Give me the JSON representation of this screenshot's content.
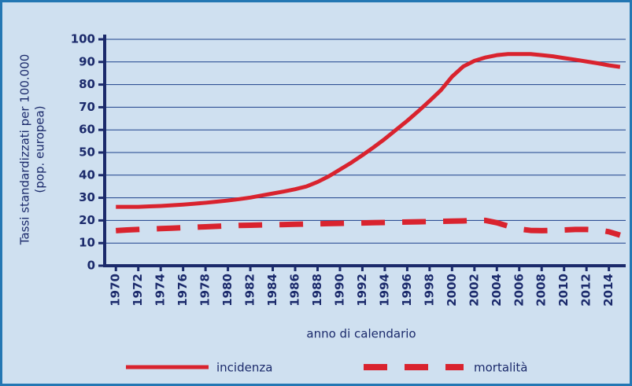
{
  "chart_data": {
    "type": "line",
    "y_label_lines": [
      "Tassi standardizzati per 100.000",
      "(pop. europea)"
    ],
    "x_label": "anno di calendario",
    "x": [
      1970,
      1971,
      1972,
      1973,
      1974,
      1975,
      1976,
      1977,
      1978,
      1979,
      1980,
      1981,
      1982,
      1983,
      1984,
      1985,
      1986,
      1987,
      1988,
      1989,
      1990,
      1991,
      1992,
      1993,
      1994,
      1995,
      1996,
      1997,
      1998,
      1999,
      2000,
      2001,
      2002,
      2003,
      2004,
      2005,
      2006,
      2007,
      2008,
      2009,
      2010,
      2011,
      2012,
      2013,
      2014,
      2015
    ],
    "series": [
      {
        "name": "incidenza",
        "color": "#d9232e",
        "dashed": false,
        "values": [
          26,
          26,
          26,
          26.2,
          26.4,
          26.7,
          27,
          27.4,
          27.8,
          28.3,
          28.8,
          29.4,
          30.1,
          31,
          31.9,
          32.8,
          33.8,
          35,
          37,
          39.5,
          42.5,
          45.5,
          48.8,
          52.3,
          56,
          60,
          64,
          68.3,
          72.8,
          77.5,
          83.5,
          88,
          90.5,
          92,
          93,
          93.5,
          93.5,
          93.5,
          93,
          92.5,
          91.7,
          91,
          90.2,
          89.4,
          88.5,
          87.8
        ]
      },
      {
        "name": "mortalità",
        "color": "#d9232e",
        "dashed": true,
        "values": [
          15.5,
          15.8,
          16,
          16.2,
          16.4,
          16.6,
          16.8,
          17,
          17.2,
          17.4,
          17.6,
          17.8,
          17.9,
          18,
          18.1,
          18.2,
          18.3,
          18.4,
          18.5,
          18.6,
          18.7,
          18.8,
          18.9,
          19,
          19.1,
          19.2,
          19.3,
          19.4,
          19.5,
          19.6,
          19.7,
          19.8,
          20,
          20,
          19,
          17.5,
          16.2,
          15.6,
          15.5,
          15.6,
          15.8,
          16,
          16,
          15.8,
          15,
          13.5
        ]
      }
    ],
    "xlim": [
      1969,
      2015.5
    ],
    "xticks": [
      1970,
      1972,
      1974,
      1976,
      1978,
      1980,
      1982,
      1984,
      1986,
      1988,
      1990,
      1992,
      1994,
      1996,
      1998,
      2000,
      2002,
      2004,
      2006,
      2008,
      2010,
      2012,
      2014
    ],
    "ylim": [
      0,
      100
    ],
    "yticks": [
      0,
      10,
      20,
      30,
      40,
      50,
      60,
      70,
      80,
      90,
      100
    ],
    "grid": true
  }
}
